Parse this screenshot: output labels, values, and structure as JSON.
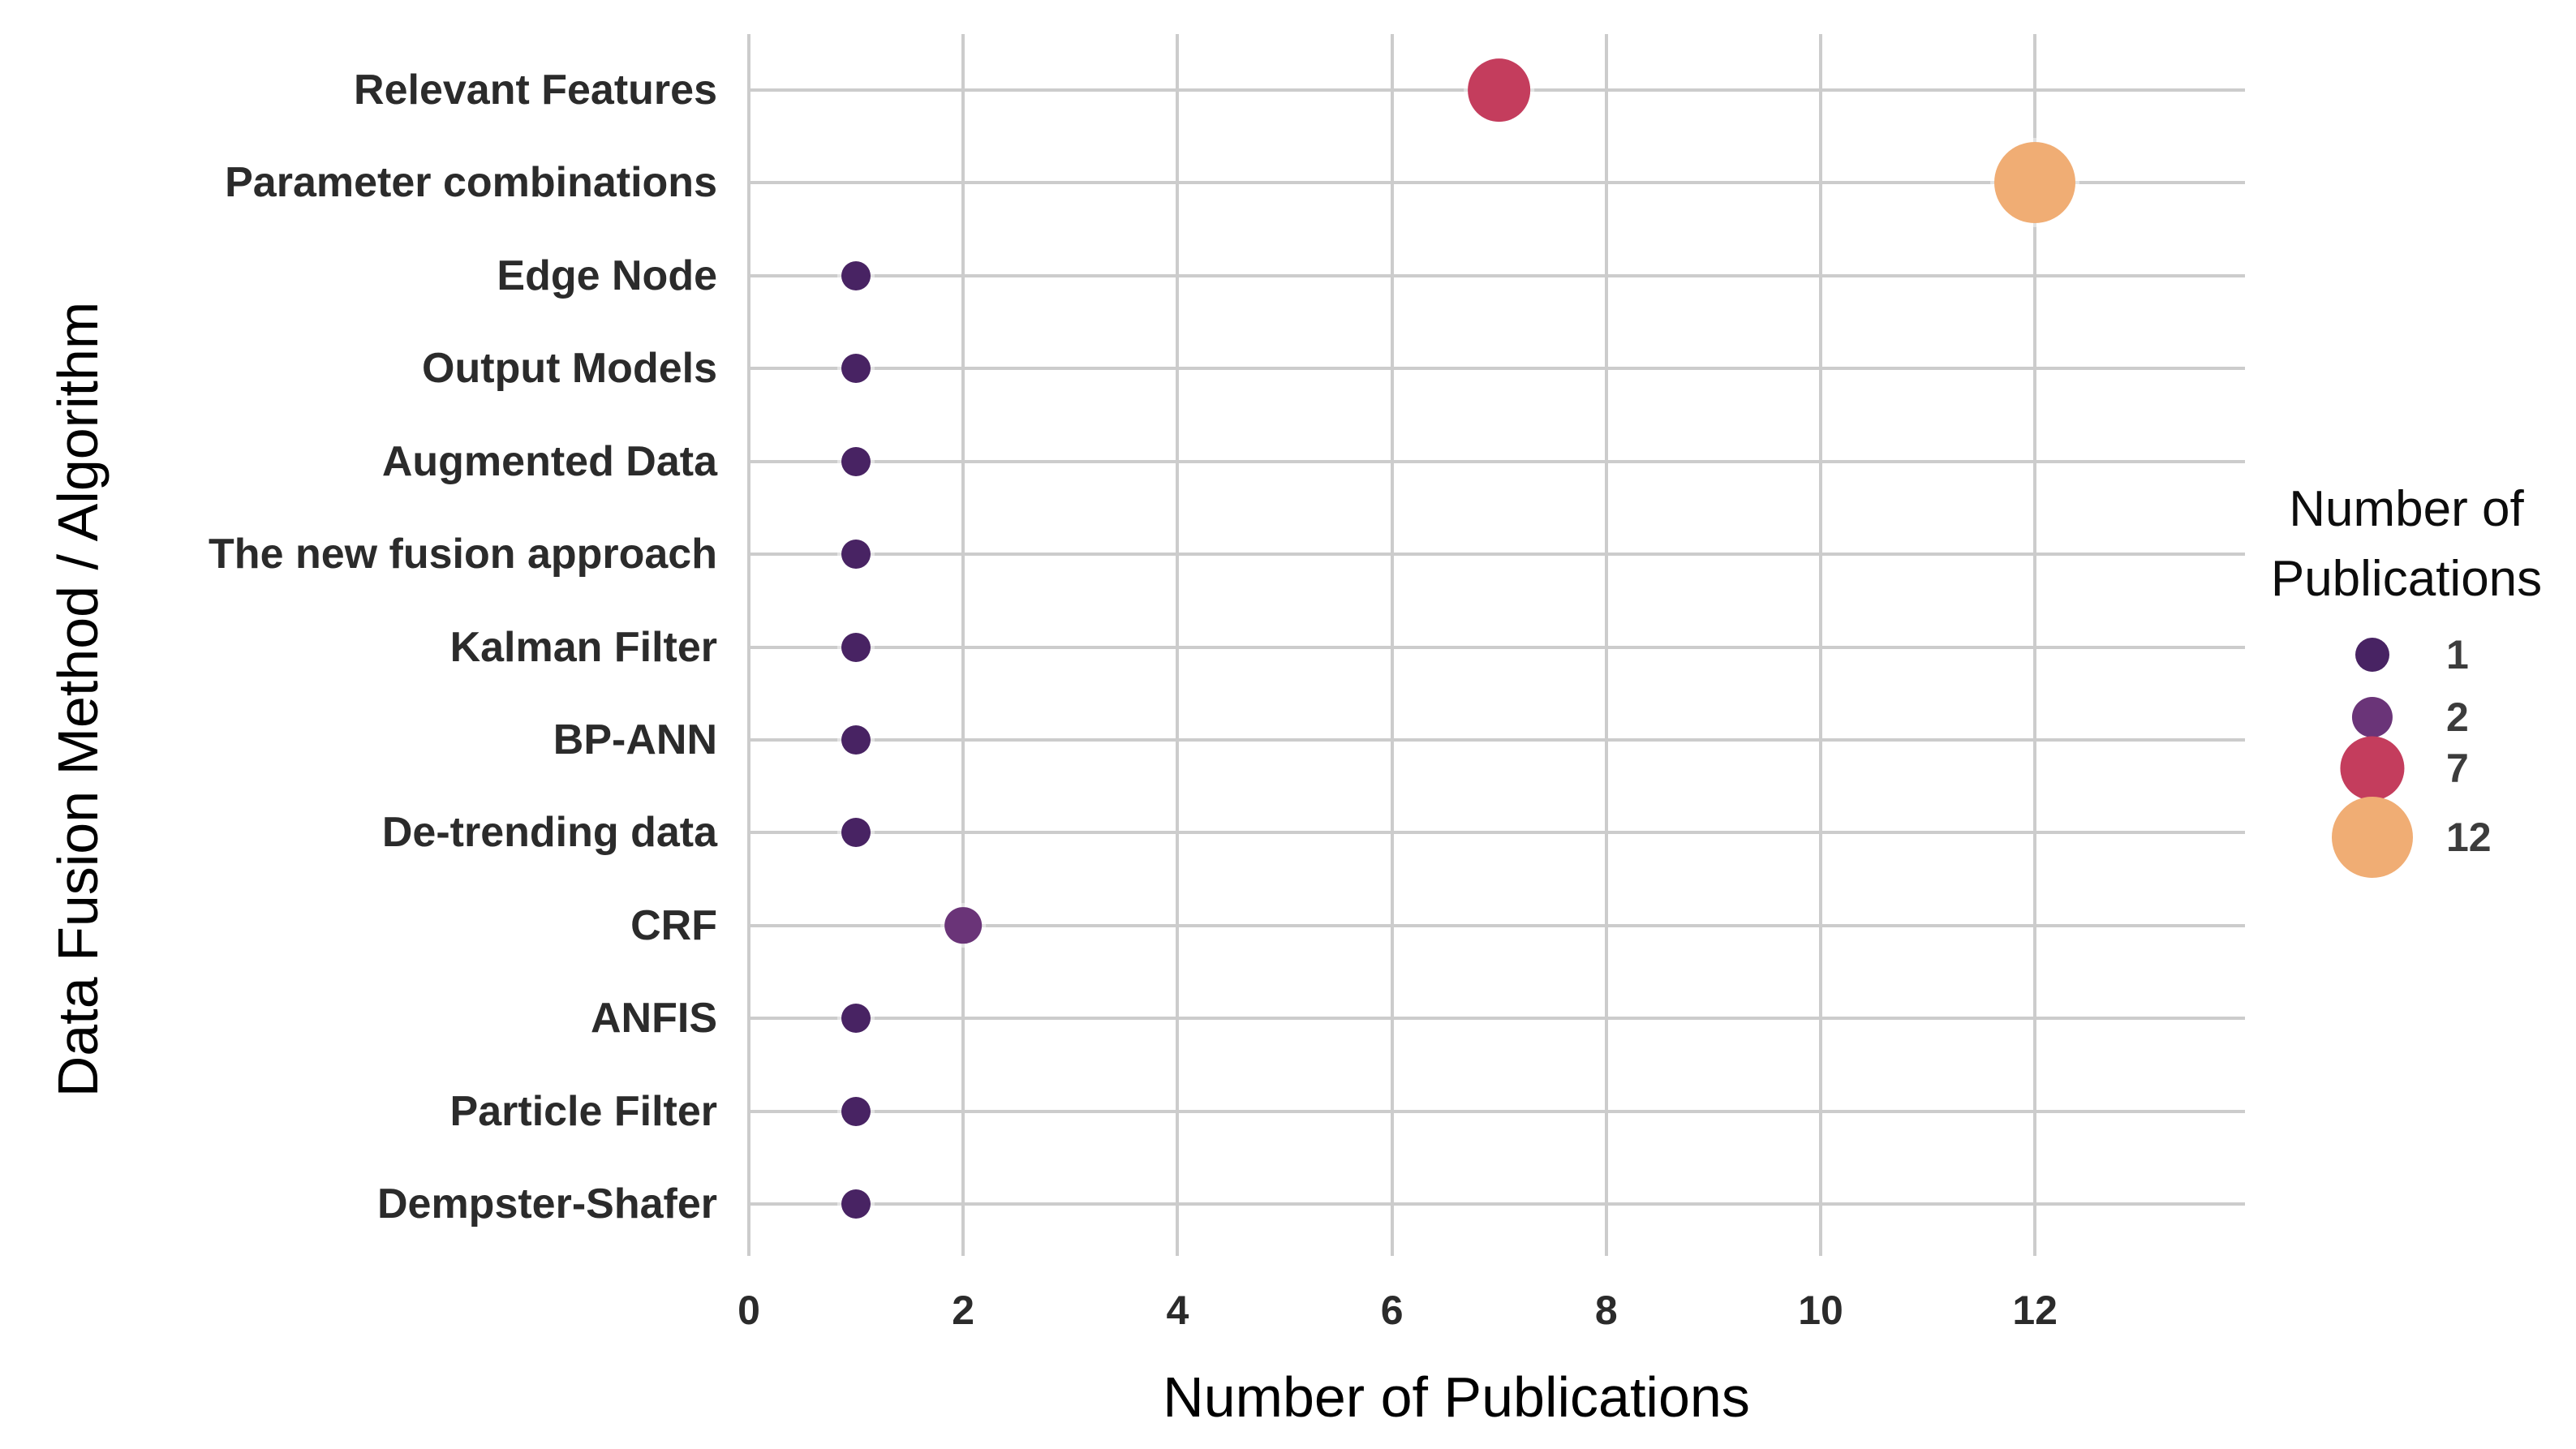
{
  "figure": {
    "background": "#ffffff",
    "gridline_color": "#cccccc",
    "text_color": "#2b2b2b"
  },
  "chart_data": {
    "type": "scatter",
    "title": "",
    "xlabel": "Number of Publications",
    "ylabel": "Data Fusion Method / Algorithm",
    "categories": [
      "Relevant Features",
      "Parameter combinations",
      "Edge Node",
      "Output Models",
      "Augmented Data",
      "The new fusion approach",
      "Kalman Filter",
      "BP-ANN",
      "De-trending data",
      "CRF",
      "ANFIS",
      "Particle Filter",
      "Dempster-Shafer"
    ],
    "values": [
      7,
      12,
      1,
      1,
      1,
      1,
      1,
      1,
      1,
      2,
      1,
      1,
      1
    ],
    "x_ticks": [
      0,
      2,
      4,
      6,
      8,
      10,
      12
    ],
    "x_tick_labels": [
      "0",
      "2",
      "4",
      "6",
      "8",
      "10",
      "12"
    ],
    "xlim": [
      0,
      13.96
    ],
    "grid": true,
    "legend_position": "right",
    "palette": {
      "1": "#482363",
      "2": "#6a3478",
      "7": "#c43d5d",
      "12": "#f0ad74"
    },
    "legend": {
      "title": "Number of Publications",
      "entries": [
        {
          "label": "1",
          "value": 1
        },
        {
          "label": "2",
          "value": 2
        },
        {
          "label": "7",
          "value": 7
        },
        {
          "label": "12",
          "value": 12
        }
      ]
    }
  }
}
